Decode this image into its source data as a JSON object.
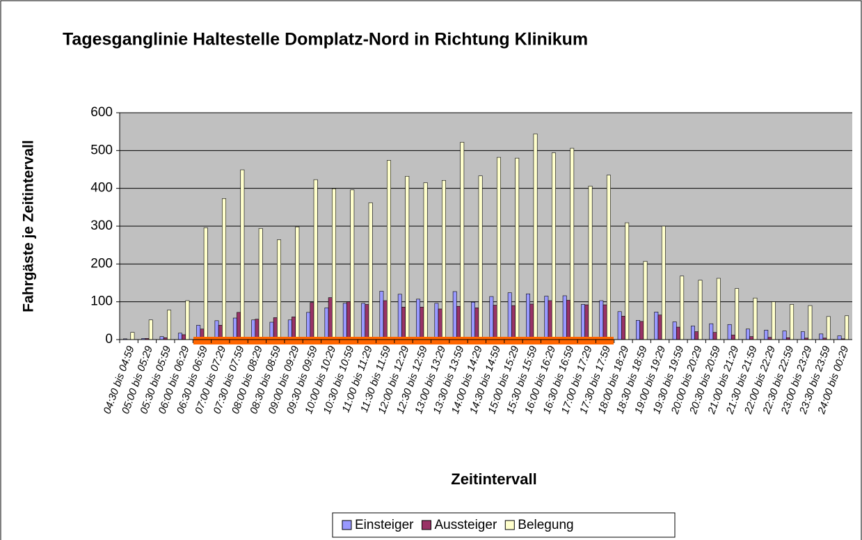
{
  "chart_data": {
    "type": "bar",
    "title": "Tagesganglinie Haltestelle Domplatz-Nord in Richtung Klinikum",
    "x_label": "Zeitintervall",
    "y_label": "Fahrgäste je Zeitintervall",
    "categories": [
      "04:30 bis 04:59",
      "05:00 bis 05:29",
      "05:30 bis 05:59",
      "06:00 bis 06:29",
      "06:30 bis 06:59",
      "07:00 bis 07:29",
      "07:30 bis 07:59",
      "08:00 bis 08:29",
      "08:30 bis 08:59",
      "09:00 bis 09:29",
      "09:30 bis 09:59",
      "10:00 bis 10:29",
      "10:30 bis 10:59",
      "11:00 bis 11:29",
      "11:30 bis 11:59",
      "12:00 bis 12:29",
      "12:30 bis 12:59",
      "13:00 bis 13:29",
      "13:30 bis 13:59",
      "14:00 bis 14:29",
      "14:30 bis 14:59",
      "15:00 bis 15:29",
      "15:30 bis 15:59",
      "16:00 bis 16:29",
      "16:30 bis 16:59",
      "17:00 bis 17:29",
      "17:30 bis 17:59",
      "18:00 bis 18:29",
      "18:30 bis 18:59",
      "19:00 bis 19:29",
      "19:30 bis 19:59",
      "20:00 bis 20:29",
      "20:30 bis 20:59",
      "21:00 bis 21:29",
      "21:30 bis 21:59",
      "22:00 bis 22:29",
      "22:30 bis 22:59",
      "23:00 bis 23:29",
      "23:30 bis 23:59",
      "24:00 bis 00:29"
    ],
    "series": [
      {
        "name": "Einsteiger",
        "color": "#9999ff",
        "values": [
          2,
          3,
          8,
          17,
          38,
          50,
          57,
          52,
          46,
          52,
          72,
          84,
          96,
          96,
          128,
          120,
          107,
          96,
          127,
          99,
          114,
          124,
          121,
          115,
          116,
          93,
          103,
          74,
          51,
          73,
          47,
          36,
          42,
          40,
          28,
          25,
          23,
          21,
          15,
          10
        ]
      },
      {
        "name": "Aussteiger",
        "color": "#993366",
        "values": [
          0,
          3,
          5,
          13,
          28,
          38,
          72,
          54,
          58,
          60,
          98,
          111,
          100,
          93,
          103,
          86,
          86,
          81,
          88,
          84,
          91,
          90,
          94,
          103,
          104,
          92,
          92,
          62,
          48,
          65,
          33,
          21,
          19,
          12,
          8,
          6,
          5,
          4,
          4,
          2
        ]
      },
      {
        "name": "Belegung",
        "color": "#ffffcc",
        "values": [
          19,
          52,
          78,
          103,
          296,
          373,
          449,
          294,
          264,
          298,
          423,
          399,
          396,
          362,
          474,
          432,
          415,
          421,
          522,
          433,
          482,
          480,
          544,
          494,
          506,
          406,
          435,
          309,
          207,
          300,
          168,
          157,
          162,
          135,
          110,
          100,
          93,
          90,
          61,
          63
        ]
      }
    ],
    "ylim": [
      0,
      600
    ],
    "yticks": [
      0,
      100,
      200,
      300,
      400,
      500,
      600
    ],
    "grid": true
  }
}
